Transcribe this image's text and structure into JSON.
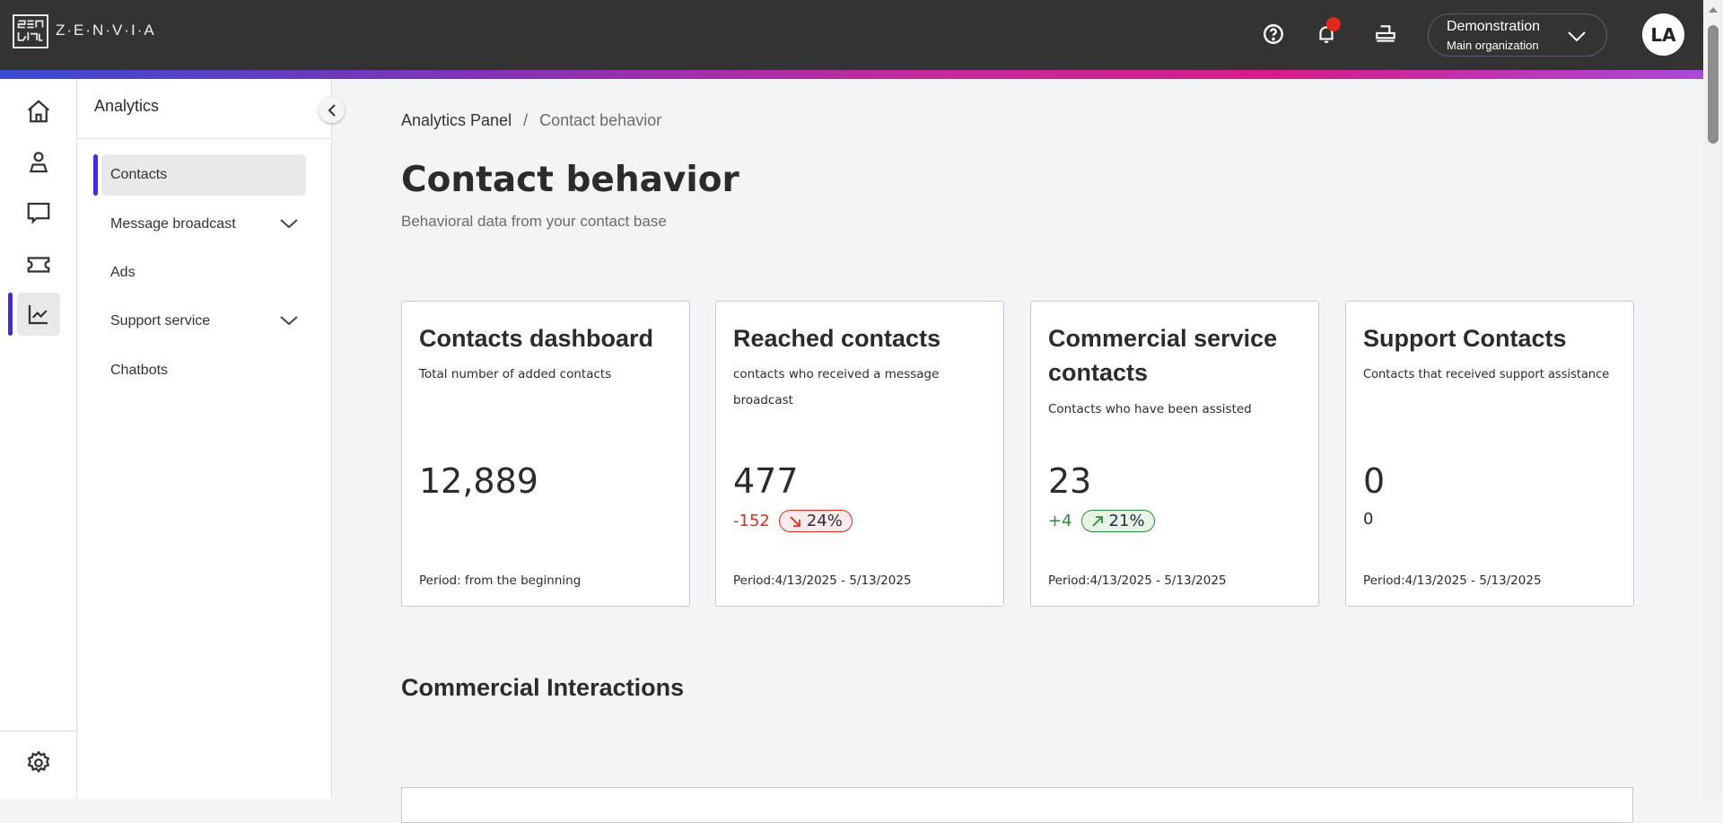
{
  "header": {
    "brand": "Z·E·N·V·I·A",
    "org_name": "Demonstration",
    "org_sub": "Main organization",
    "avatar": "LA",
    "icons": [
      "help-circle-icon",
      "bell-icon",
      "printer-icon"
    ],
    "notification_dot_color": "#e0281c"
  },
  "rail": {
    "items": [
      "home",
      "contacts",
      "chat",
      "ticket",
      "analytics"
    ],
    "active": "analytics",
    "bottom": "settings"
  },
  "sidebar": {
    "title": "Analytics",
    "items": [
      {
        "label": "Contacts",
        "active": true
      },
      {
        "label": "Message broadcast",
        "expandable": true
      },
      {
        "label": "Ads"
      },
      {
        "label": "Support service",
        "expandable": true
      },
      {
        "label": "Chatbots"
      }
    ]
  },
  "breadcrumb": {
    "parent": "Analytics Panel",
    "separator": "/",
    "current": "Contact behavior"
  },
  "page": {
    "title": "Contact behavior",
    "subtitle": "Behavioral data from your contact base"
  },
  "cards": [
    {
      "title": "Contacts dashboard",
      "desc": "Total number of added contacts",
      "value": "12,889",
      "period": "Period: from the beginning"
    },
    {
      "title": "Reached contacts",
      "desc": "contacts who received a message broadcast",
      "value": "477",
      "delta": "-152",
      "pct": "24%",
      "trend": "down",
      "period": "Period:4/13/2025 - 5/13/2025"
    },
    {
      "title": "Commercial service contacts",
      "desc": "Contacts who have been assisted",
      "value": "23",
      "delta": "+4",
      "pct": "21%",
      "trend": "up",
      "period": "Period:4/13/2025 - 5/13/2025"
    },
    {
      "title": "Support Contacts",
      "desc": "Contacts that received support assistance",
      "value": "0",
      "delta": "0",
      "period": "Period:4/13/2025 - 5/13/2025"
    }
  ],
  "section": {
    "title": "Commercial Interactions"
  },
  "colors": {
    "accent": "#4628e0",
    "negative": "#e0281c",
    "positive": "#2b8a3e"
  }
}
